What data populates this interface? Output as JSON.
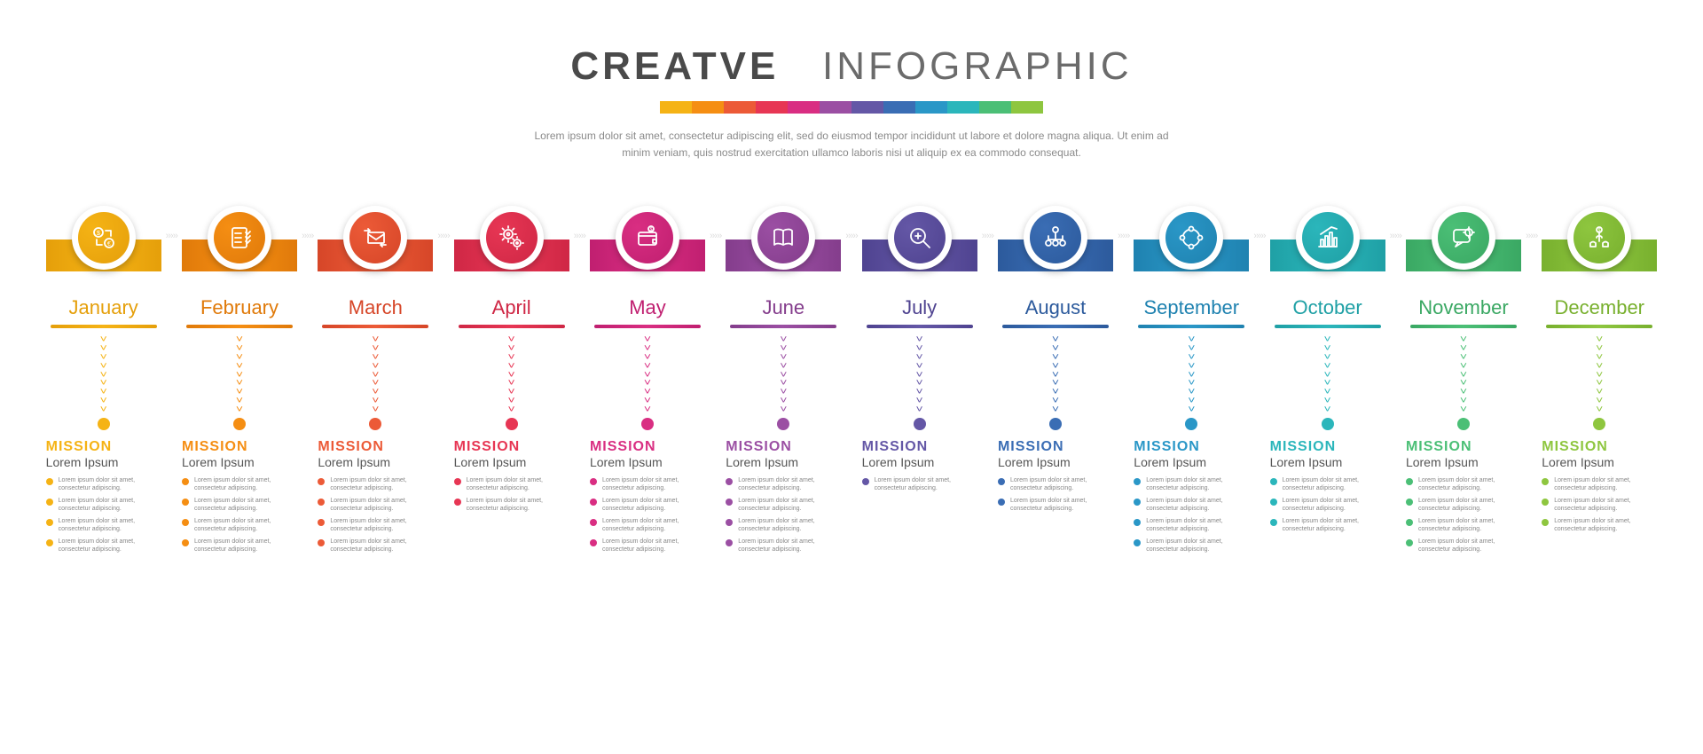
{
  "header": {
    "title_bold": "CREATVE",
    "title_light": "INFOGRAPHIC",
    "title_bold_color": "#4a4a4a",
    "title_light_color": "#6b6b6b",
    "title_fontsize": 44,
    "subtitle": "Lorem ipsum dolor sit amet, consectetur adipiscing elit, sed do eiusmod tempor incididunt ut labore et dolore magna aliqua. Ut enim ad minim veniam, quis nostrud exercitation ullamco laboris nisi ut aliquip ex ea commodo consequat.",
    "subtitle_color": "#8a8a8a",
    "subtitle_fontsize": 12,
    "strip_colors": [
      "#f5b315",
      "#f58e13",
      "#ec5a37",
      "#e73654",
      "#d92e82",
      "#9b4fa3",
      "#6457a6",
      "#3a6db4",
      "#2a97c7",
      "#2bb6bb",
      "#4bbf76",
      "#8ec63f"
    ]
  },
  "layout": {
    "background_color": "#ffffff",
    "connector_color": "#d0d0d0",
    "chevron_count": 9,
    "connector_glyph": "›››››",
    "bullet_text": "Lorem ipsum dolor sit amet, consectetur adipiscing.",
    "mission_label": "MISSION",
    "mission_sub": "Lorem Ipsum"
  },
  "months": [
    {
      "name": "January",
      "color": "#f5b315",
      "color_dark": "#e59f0a",
      "icon": "money-exchange",
      "bullets": 4
    },
    {
      "name": "February",
      "color": "#f58e13",
      "color_dark": "#e07a0a",
      "icon": "checklist",
      "bullets": 4
    },
    {
      "name": "March",
      "color": "#ec5a37",
      "color_dark": "#d64628",
      "icon": "mail-arrows",
      "bullets": 4
    },
    {
      "name": "April",
      "color": "#e73654",
      "color_dark": "#cf2745",
      "icon": "gears",
      "bullets": 2
    },
    {
      "name": "May",
      "color": "#d92e82",
      "color_dark": "#c01f70",
      "icon": "wallet",
      "bullets": 4
    },
    {
      "name": "June",
      "color": "#9b4fa3",
      "color_dark": "#843d8c",
      "icon": "book",
      "bullets": 4
    },
    {
      "name": "July",
      "color": "#6457a6",
      "color_dark": "#4f4390",
      "icon": "magnifier",
      "bullets": 1
    },
    {
      "name": "August",
      "color": "#3a6db4",
      "color_dark": "#2c5a9c",
      "icon": "org-chart",
      "bullets": 2
    },
    {
      "name": "September",
      "color": "#2a97c7",
      "color_dark": "#1f82b0",
      "icon": "team-cycle",
      "bullets": 4
    },
    {
      "name": "October",
      "color": "#2bb6bb",
      "color_dark": "#1fa0a5",
      "icon": "bar-chart",
      "bullets": 3
    },
    {
      "name": "November",
      "color": "#4bbf76",
      "color_dark": "#3aa863",
      "icon": "chat-gear",
      "bullets": 4
    },
    {
      "name": "December",
      "color": "#8ec63f",
      "color_dark": "#78b02e",
      "icon": "growth-hands",
      "bullets": 3
    }
  ],
  "icons": {
    "stroke_width": 1.8,
    "stroke_color": "#ffffff"
  }
}
